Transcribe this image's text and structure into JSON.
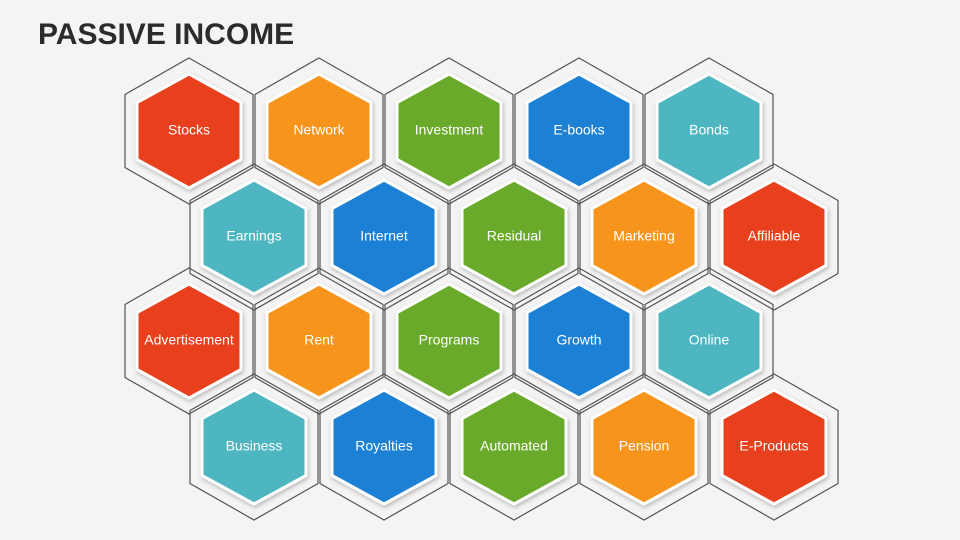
{
  "title": "PASSIVE INCOME",
  "nodes": [
    {
      "label": "Stocks",
      "color": "#e8401c"
    },
    {
      "label": "Network",
      "color": "#f7941d"
    },
    {
      "label": "Investment",
      "color": "#6aaa2a"
    },
    {
      "label": "E-books",
      "color": "#1b81d4"
    },
    {
      "label": "Bonds",
      "color": "#4db6c0"
    },
    {
      "label": "Earnings",
      "color": "#4db6c0"
    },
    {
      "label": "Internet",
      "color": "#1b81d4"
    },
    {
      "label": "Residual",
      "color": "#6aaa2a"
    },
    {
      "label": "Marketing",
      "color": "#f7941d"
    },
    {
      "label": "Affiliable",
      "color": "#e8401c"
    },
    {
      "label": "Advertisement",
      "color": "#e8401c"
    },
    {
      "label": "Rent",
      "color": "#f7941d"
    },
    {
      "label": "Programs",
      "color": "#6aaa2a"
    },
    {
      "label": "Growth",
      "color": "#1b81d4"
    },
    {
      "label": "Online",
      "color": "#4db6c0"
    },
    {
      "label": "Business",
      "color": "#4db6c0"
    },
    {
      "label": "Royalties",
      "color": "#1b81d4"
    },
    {
      "label": "Automated",
      "color": "#6aaa2a"
    },
    {
      "label": "Pension",
      "color": "#f7941d"
    },
    {
      "label": "E-Products",
      "color": "#e8401c"
    }
  ]
}
